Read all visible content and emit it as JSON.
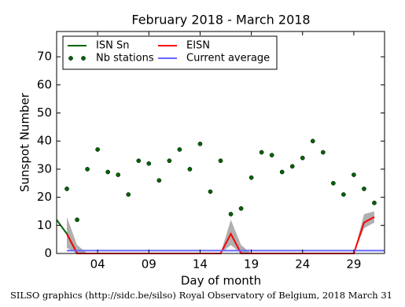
{
  "chart_data": {
    "type": "line",
    "title": "February 2018 - March 2018",
    "xlabel": "Day of month",
    "ylabel": "Sunspot Number",
    "xlim": [
      0,
      32
    ],
    "ylim": [
      0,
      79
    ],
    "xticks": [
      {
        "value": 4,
        "label": "04"
      },
      {
        "value": 9,
        "label": "09"
      },
      {
        "value": 14,
        "label": "14"
      },
      {
        "value": 19,
        "label": "19"
      },
      {
        "value": 24,
        "label": "24"
      },
      {
        "value": 29,
        "label": "29"
      }
    ],
    "yticks": [
      0,
      10,
      20,
      30,
      40,
      50,
      60,
      70
    ],
    "legend": "upper left",
    "series": [
      {
        "name": "ISN Sn",
        "color": "#006400",
        "mode": "line",
        "x": [
          0,
          1,
          2
        ],
        "values": [
          12,
          7,
          0
        ]
      },
      {
        "name": "EISN",
        "color": "#ff0000",
        "mode": "line",
        "band_color": "#b0b0b0",
        "x": [
          1,
          2,
          3,
          4,
          5,
          6,
          7,
          8,
          9,
          10,
          11,
          12,
          13,
          14,
          15,
          16,
          17,
          18,
          19,
          20,
          21,
          22,
          23,
          24,
          25,
          26,
          27,
          28,
          29,
          30,
          31
        ],
        "values": [
          7,
          0,
          0,
          0,
          0,
          0,
          0,
          0,
          0,
          0,
          0,
          0,
          0,
          0,
          0,
          0,
          7,
          0,
          0,
          0,
          0,
          0,
          0,
          0,
          0,
          0,
          0,
          0,
          0,
          11,
          13
        ],
        "lower": [
          2,
          0,
          0,
          0,
          0,
          0,
          0,
          0,
          0,
          0,
          0,
          0,
          0,
          0,
          0,
          0,
          3,
          0,
          0,
          0,
          0,
          0,
          0,
          0,
          0,
          0,
          0,
          0,
          0,
          9,
          11
        ],
        "upper": [
          13,
          3,
          0,
          0,
          0,
          0,
          0,
          0,
          0,
          0,
          0,
          0,
          0,
          0,
          0,
          0,
          12,
          3,
          0,
          0,
          0,
          0,
          0,
          0,
          0,
          0,
          0,
          0,
          0,
          14,
          15
        ]
      },
      {
        "name": "Nb stations",
        "color": "#006400",
        "mode": "markers",
        "x": [
          1,
          2,
          3,
          4,
          5,
          6,
          7,
          8,
          9,
          10,
          11,
          12,
          13,
          14,
          15,
          16,
          17,
          18,
          19,
          20,
          21,
          22,
          23,
          24,
          25,
          26,
          27,
          28,
          29,
          30,
          31
        ],
        "values": [
          23,
          12,
          30,
          37,
          29,
          28,
          21,
          33,
          32,
          26,
          33,
          37,
          30,
          39,
          22,
          33,
          14,
          16,
          27,
          36,
          35,
          29,
          31,
          34,
          40,
          36,
          25,
          21,
          28,
          23,
          18
        ]
      },
      {
        "name": "Current average",
        "color": "#6666ff",
        "mode": "line",
        "x": [
          1,
          32
        ],
        "values": [
          1,
          1
        ]
      }
    ]
  },
  "footer": "SILSO graphics (http://sidc.be/silso) Royal Observatory of Belgium, 2018 March 31"
}
